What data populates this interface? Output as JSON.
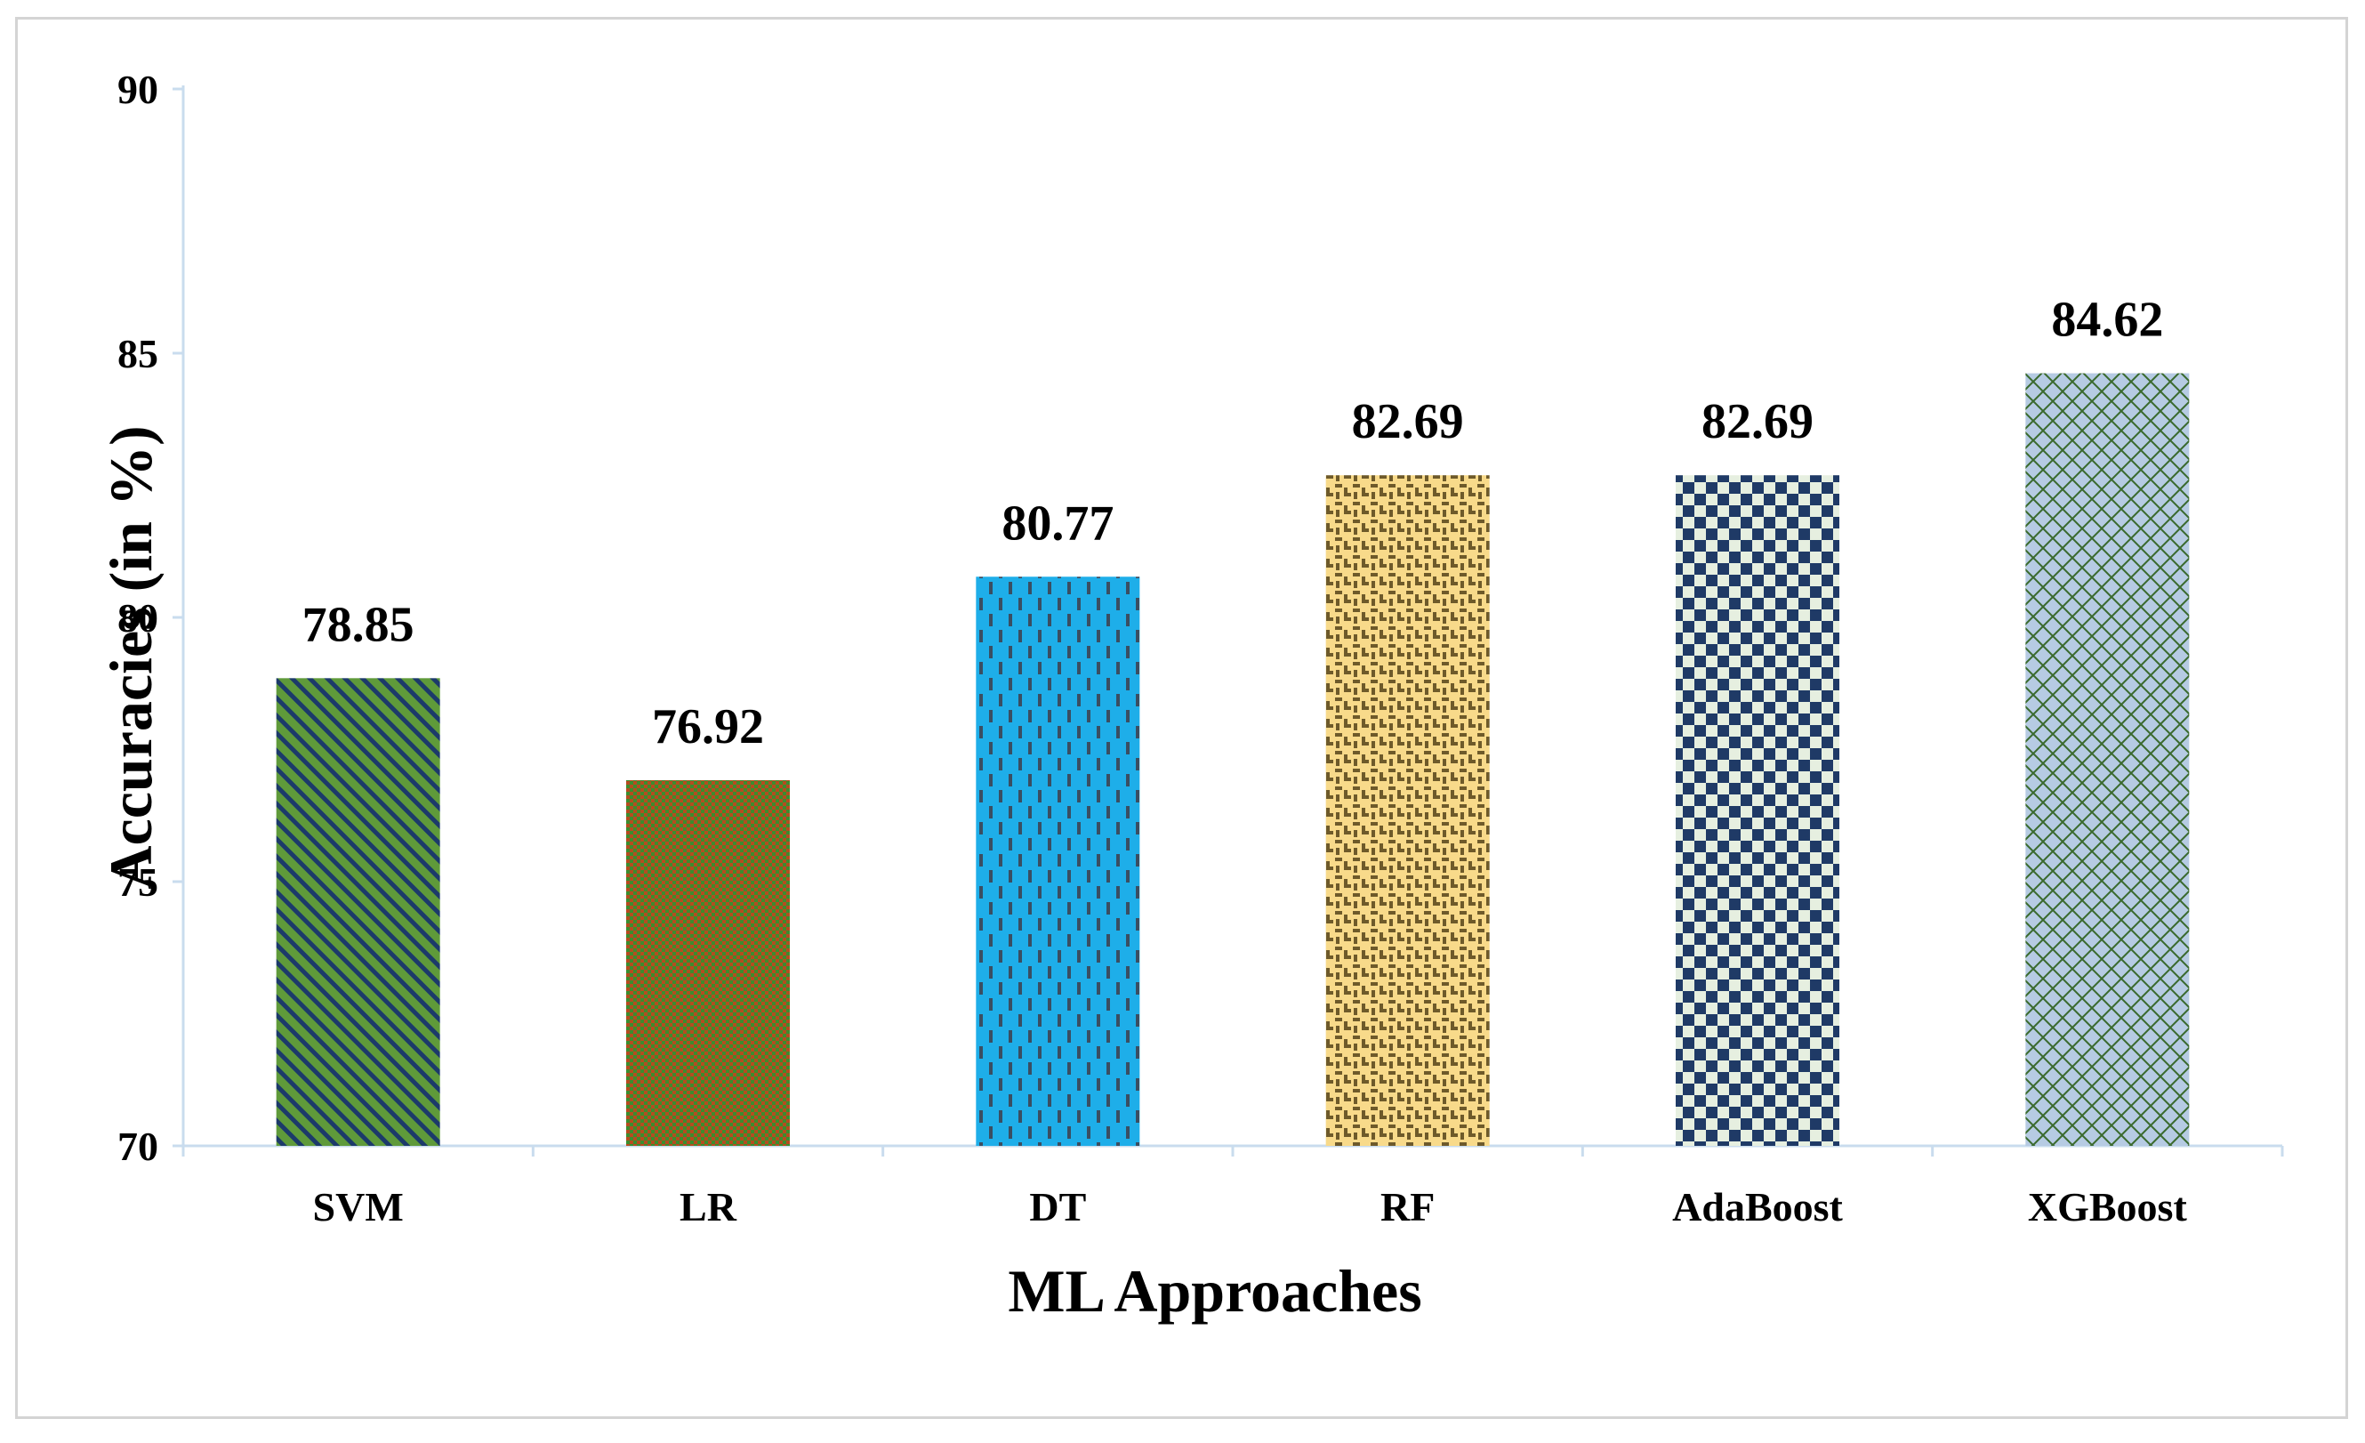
{
  "chart_data": {
    "type": "bar",
    "title": "",
    "xlabel": "ML Approaches",
    "ylabel": "Accuracies (in %)",
    "categories": [
      "SVM",
      "LR",
      "DT",
      "RF",
      "AdaBoost",
      "XGBoost"
    ],
    "values": [
      78.85,
      76.92,
      80.77,
      82.69,
      82.69,
      84.62
    ],
    "value_labels": [
      "78.85",
      "76.92",
      "80.77",
      "82.69",
      "82.69",
      "84.62"
    ],
    "ylim": [
      70,
      90
    ],
    "yticks": [
      70,
      75,
      80,
      85,
      90
    ],
    "ytick_labels": [
      "70",
      "75",
      "80",
      "85",
      "90"
    ],
    "grid": false,
    "legend": "none",
    "fill_patterns": [
      "diagonal-stripes-green-navy",
      "checker-green-red",
      "dashed-verticals-on-blue",
      "weave-olive-on-yellow",
      "checkerboard-navy-on-cream",
      "diamond-lattice-green-on-blue"
    ]
  },
  "colors": {
    "axis": "#c9dcee",
    "frame_border": "#d4d4d4",
    "svm_primary": "#5f9a3a",
    "svm_secondary": "#1c3a6a",
    "lr_primary": "#b74b1f",
    "lr_secondary": "#3a8e2e",
    "dt_primary": "#1eaee9",
    "dt_secondary": "#3a4e62",
    "rf_primary": "#f8da8a",
    "rf_secondary": "#6e5a2a",
    "ada_primary": "#1f3a66",
    "ada_secondary": "#e6efe0",
    "xgb_primary": "#b6cbe3",
    "xgb_secondary": "#3a6a2e"
  }
}
